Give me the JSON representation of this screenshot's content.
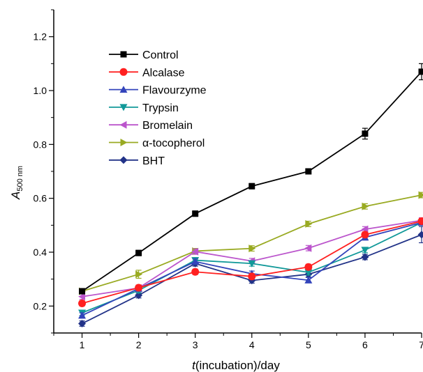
{
  "chart_data": {
    "type": "line",
    "xlabel_italic": "t",
    "xlabel_rest": "(incubation)/day",
    "ylabel_italic": "A",
    "ylabel_sub": "500 nm",
    "x": [
      1,
      2,
      3,
      4,
      5,
      6,
      7
    ],
    "xlim": [
      0.5,
      7
    ],
    "ylim": [
      0.1,
      1.3
    ],
    "xticks": [
      1,
      2,
      3,
      4,
      5,
      6,
      7
    ],
    "xtick_labels": [
      "1",
      "2",
      "3",
      "4",
      "5",
      "6",
      "7"
    ],
    "yticks": [
      0.2,
      0.4,
      0.6,
      0.8,
      1.0,
      1.2
    ],
    "ytick_labels": [
      "0.2",
      "0.4",
      "0.6",
      "0.8",
      "1.0",
      "1.2"
    ],
    "legend_position": "top-left",
    "series": [
      {
        "name": "Control",
        "color": "#000000",
        "marker": "square",
        "values": [
          0.255,
          0.397,
          0.543,
          0.645,
          0.7,
          0.84,
          1.07
        ],
        "errors": [
          0.01,
          0.01,
          0.01,
          0.01,
          0.01,
          0.02,
          0.03
        ]
      },
      {
        "name": "Alcalase",
        "color": "#ff2020",
        "marker": "circle",
        "values": [
          0.21,
          0.268,
          0.327,
          0.31,
          0.345,
          0.465,
          0.515
        ],
        "errors": [
          0.01,
          0.01,
          0.01,
          0.01,
          0.01,
          0.01,
          0.01
        ]
      },
      {
        "name": "Flavourzyme",
        "color": "#3344bb",
        "marker": "triangle-up",
        "values": [
          0.165,
          0.265,
          0.365,
          0.32,
          0.296,
          0.455,
          0.51
        ],
        "errors": [
          0.01,
          0.01,
          0.01,
          0.01,
          0.01,
          0.01,
          0.01
        ]
      },
      {
        "name": "Trypsin",
        "color": "#119999",
        "marker": "triangle-down",
        "values": [
          0.175,
          0.258,
          0.37,
          0.358,
          0.325,
          0.408,
          0.51
        ],
        "errors": [
          0.01,
          0.01,
          0.01,
          0.01,
          0.01,
          0.01,
          0.01
        ]
      },
      {
        "name": "Bromelain",
        "color": "#bb55cc",
        "marker": "triangle-left",
        "values": [
          0.235,
          0.267,
          0.402,
          0.367,
          0.415,
          0.485,
          0.518
        ],
        "errors": [
          0.01,
          0.01,
          0.01,
          0.01,
          0.01,
          0.01,
          0.01
        ]
      },
      {
        "name": "α-tocopherol",
        "color": "#99aa22",
        "marker": "triangle-right",
        "values": [
          0.255,
          0.318,
          0.404,
          0.414,
          0.505,
          0.57,
          0.612
        ],
        "errors": [
          0.01,
          0.015,
          0.01,
          0.01,
          0.01,
          0.01,
          0.01
        ]
      },
      {
        "name": "BHT",
        "color": "#223388",
        "marker": "diamond",
        "values": [
          0.135,
          0.24,
          0.358,
          0.295,
          0.318,
          0.382,
          0.465
        ],
        "errors": [
          0.01,
          0.01,
          0.01,
          0.01,
          0.01,
          0.01,
          0.03
        ]
      }
    ]
  }
}
